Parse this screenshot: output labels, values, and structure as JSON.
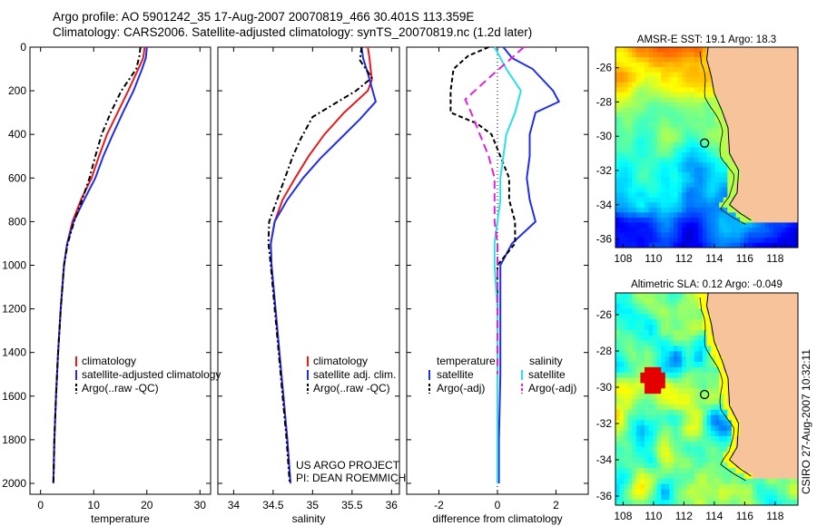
{
  "header": {
    "line1": "Argo profile: AO 5901242_35 17-Aug-2007 20070819_466 30.401S 113.359E",
    "line2": "Climatology: CARS2006. Satellite-adjusted climatology: synTS_20070819.nc (1.2d later)"
  },
  "colors": {
    "climatology": "#e41a1c",
    "satellite": "#1f2ee8",
    "argo": "#000000",
    "salinity_sat": "#27e0e8",
    "salinity_argo": "#e020e0",
    "land": "#f7c39a"
  },
  "chart_data": [
    {
      "type": "line",
      "id": "temperature",
      "xlabel": "temperature",
      "ylabel": "",
      "xlim": [
        -2,
        32
      ],
      "ylim": [
        2050,
        0
      ],
      "xticks": [
        0,
        10,
        20,
        30
      ],
      "yticks": [
        0,
        200,
        400,
        600,
        800,
        1000,
        1200,
        1400,
        1600,
        1800,
        2000
      ],
      "legend": [
        "climatology",
        "satellite-adjusted climatology",
        "Argo(..raw -QC)"
      ],
      "series": [
        {
          "name": "climatology",
          "color": "#e41a1c",
          "dash": "solid",
          "x": [
            19.6,
            19.3,
            18.4,
            16.5,
            14.5,
            12.5,
            11.0,
            9.6,
            7.6,
            6.0,
            5.0,
            4.4,
            3.8,
            3.3,
            2.9,
            2.6,
            2.4
          ],
          "y": [
            0,
            50,
            100,
            200,
            300,
            400,
            500,
            600,
            700,
            800,
            900,
            1000,
            1200,
            1400,
            1600,
            1800,
            2000
          ]
        },
        {
          "name": "satellite-adjusted climatology",
          "color": "#1f2ee8",
          "dash": "solid",
          "x": [
            20.0,
            19.8,
            19.1,
            17.5,
            15.5,
            13.6,
            11.8,
            10.3,
            8.2,
            6.2,
            5.0,
            4.4,
            3.8,
            3.3,
            2.9,
            2.6,
            2.4
          ],
          "y": [
            0,
            50,
            100,
            200,
            300,
            400,
            500,
            600,
            700,
            800,
            900,
            1000,
            1200,
            1400,
            1600,
            1800,
            2000
          ]
        },
        {
          "name": "Argo(..raw -QC)",
          "color": "#000000",
          "dash": "6,3,2,3",
          "x": [
            18.8,
            18.6,
            18.0,
            15.2,
            13.2,
            11.5,
            10.3,
            9.2,
            7.8,
            6.3,
            5.1,
            4.4,
            3.8,
            3.3,
            2.9,
            2.6,
            2.4
          ],
          "y": [
            0,
            40,
            100,
            200,
            300,
            400,
            500,
            600,
            700,
            800,
            900,
            1000,
            1200,
            1400,
            1600,
            1800,
            2000
          ]
        }
      ]
    },
    {
      "type": "line",
      "id": "salinity",
      "xlabel": "salinity",
      "ylabel": "",
      "xlim": [
        33.8,
        36.1
      ],
      "ylim": [
        2050,
        0
      ],
      "xticks": [
        34,
        34.5,
        35,
        35.5,
        36
      ],
      "legend": [
        "climatology",
        "satellite adj. clim.",
        "Argo(..raw -QC)"
      ],
      "annotation": [
        "US ARGO PROJECT",
        "PI: DEAN ROEMMICH"
      ],
      "series": [
        {
          "name": "climatology",
          "color": "#e41a1c",
          "dash": "solid",
          "x": [
            35.7,
            35.72,
            35.75,
            35.7,
            35.4,
            35.15,
            34.95,
            34.78,
            34.62,
            34.52,
            34.47,
            34.48,
            34.53,
            34.58,
            34.63,
            34.68,
            34.72
          ],
          "y": [
            0,
            50,
            150,
            200,
            300,
            400,
            500,
            600,
            700,
            800,
            900,
            1000,
            1200,
            1400,
            1600,
            1800,
            2000
          ]
        },
        {
          "name": "satellite adj. clim.",
          "color": "#1f2ee8",
          "dash": "solid",
          "x": [
            35.62,
            35.64,
            35.7,
            35.8,
            35.6,
            35.35,
            35.1,
            34.88,
            34.68,
            34.52,
            34.47,
            34.48,
            34.53,
            34.58,
            34.63,
            34.68,
            34.72
          ],
          "y": [
            0,
            50,
            120,
            250,
            330,
            420,
            510,
            600,
            700,
            800,
            900,
            1000,
            1200,
            1400,
            1600,
            1800,
            2000
          ]
        },
        {
          "name": "Argo(..raw -QC)",
          "color": "#000000",
          "dash": "6,3,2,3",
          "x": [
            35.62,
            35.6,
            35.75,
            35.55,
            35.0,
            34.85,
            34.75,
            34.65,
            34.55,
            34.45,
            34.44,
            34.47,
            34.52,
            34.57,
            34.62,
            34.67,
            34.71
          ],
          "y": [
            0,
            60,
            140,
            200,
            320,
            420,
            500,
            600,
            700,
            800,
            900,
            1000,
            1200,
            1400,
            1600,
            1800,
            2000
          ]
        }
      ]
    },
    {
      "type": "line",
      "id": "difference",
      "xlabel": "difference from climatology",
      "ylabel": "",
      "xlim": [
        -3.1,
        3.1
      ],
      "ylim": [
        2050,
        0
      ],
      "xticks": [
        -2,
        0,
        2
      ],
      "legend_temperature": {
        "title": "temperature",
        "items": [
          "satellite",
          "Argo(-adj)"
        ]
      },
      "legend_salinity": {
        "title": "salinity",
        "items": [
          "satellite",
          "Argo(-adj)"
        ]
      },
      "series": [
        {
          "name": "temperature satellite",
          "color": "#1f2ee8",
          "dash": "solid",
          "x": [
            0.2,
            0.5,
            1.2,
            1.9,
            2.1,
            1.3,
            1.1,
            1.1,
            1.0,
            1.1,
            1.3,
            0.5,
            0.1,
            0.1,
            0.1,
            0.05,
            0.05
          ],
          "y": [
            0,
            50,
            100,
            200,
            250,
            300,
            400,
            500,
            600,
            700,
            800,
            900,
            1000,
            1200,
            1500,
            1800,
            2000
          ]
        },
        {
          "name": "temperature Argo(-adj)",
          "color": "#000000",
          "dash": "5,3",
          "x": [
            -0.3,
            -1.0,
            -1.5,
            -1.6,
            -1.6,
            -0.7,
            -0.2,
            0.1,
            0.4,
            0.4,
            0.6,
            0.6,
            0.0,
            0.0,
            0.0,
            0.0,
            0.0
          ],
          "y": [
            0,
            40,
            100,
            200,
            300,
            350,
            400,
            500,
            600,
            700,
            800,
            900,
            1000,
            1200,
            1500,
            1800,
            2000
          ]
        },
        {
          "name": "salinity satellite",
          "color": "#27e0e8",
          "dash": "solid",
          "x": [
            -0.1,
            0.3,
            0.8,
            0.6,
            0.3,
            0.2,
            0.1,
            0.1,
            0.0,
            -0.1,
            -0.1,
            0.0,
            0.0,
            0.0,
            0.0
          ],
          "y": [
            0,
            100,
            200,
            300,
            400,
            500,
            600,
            700,
            800,
            900,
            1000,
            1200,
            1500,
            1800,
            2000
          ]
        },
        {
          "name": "salinity Argo(-adj)",
          "color": "#e020e0",
          "dash": "9,5",
          "x": [
            0.9,
            0.4,
            -0.2,
            -1.1,
            -0.9,
            -0.6,
            -0.3,
            -0.1,
            -0.1,
            -0.1,
            0.0,
            0.0,
            0.0,
            0.0
          ],
          "y": [
            0,
            60,
            130,
            240,
            300,
            400,
            500,
            600,
            700,
            800,
            900,
            1000,
            1200,
            1500
          ]
        }
      ]
    },
    {
      "type": "heatmap",
      "id": "sst",
      "title": "AMSR-E SST: 19.1 Argo: 18.3",
      "xlim": [
        107.5,
        119.5
      ],
      "ylim": [
        -36.5,
        -24.8
      ],
      "xticks": [
        108,
        110,
        112,
        114,
        116,
        118
      ],
      "yticks": [
        -26,
        -28,
        -30,
        -32,
        -34,
        -36
      ],
      "marker": {
        "lon": 113.359,
        "lat": -30.401
      }
    },
    {
      "type": "heatmap",
      "id": "sla",
      "title": "Altimetric SLA: 0.12 Argo: -0.049",
      "xlim": [
        107.5,
        119.5
      ],
      "ylim": [
        -36.5,
        -24.8
      ],
      "xticks": [
        108,
        110,
        112,
        114,
        116,
        118
      ],
      "yticks": [
        -26,
        -28,
        -30,
        -32,
        -34,
        -36
      ],
      "marker": {
        "lon": 113.359,
        "lat": -30.401
      }
    }
  ],
  "footer": {
    "stamp": "CSIRO 27-Aug-2007 10:32:11"
  }
}
